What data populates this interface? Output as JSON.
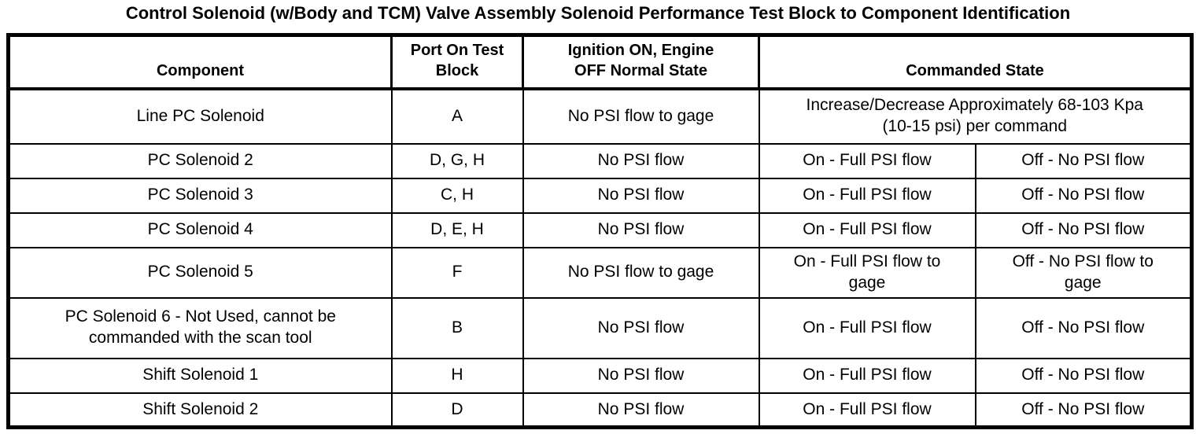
{
  "page": {
    "title": "Control Solenoid (w/Body and TCM) Valve Assembly Solenoid Performance Test Block to Component Identification"
  },
  "colors": {
    "border": "#000000",
    "text": "#000000",
    "background": "#ffffff"
  },
  "table": {
    "headers": {
      "component": "Component",
      "port": "Port On Test\nBlock",
      "ignition": "Ignition ON, Engine\nOFF Normal State",
      "commanded": "Commanded State"
    },
    "rows": [
      {
        "component": "Line PC Solenoid",
        "port": "A",
        "normal": "No PSI flow to gage",
        "commanded": "Increase/Decrease Approximately 68-103 Kpa\n(10-15 psi) per command"
      },
      {
        "component": "PC Solenoid 2",
        "port": "D, G, H",
        "normal": "No PSI flow",
        "on": "On - Full PSI flow",
        "off": "Off - No PSI flow"
      },
      {
        "component": "PC Solenoid 3",
        "port": "C, H",
        "normal": "No PSI flow",
        "on": "On - Full PSI flow",
        "off": "Off - No PSI flow"
      },
      {
        "component": "PC Solenoid 4",
        "port": "D, E, H",
        "normal": "No PSI flow",
        "on": "On - Full PSI flow",
        "off": "Off - No PSI flow"
      },
      {
        "component": "PC Solenoid 5",
        "port": "F",
        "normal": "No PSI flow to gage",
        "on": "On - Full PSI flow to\ngage",
        "off": "Off - No PSI flow to\ngage"
      },
      {
        "component": "PC Solenoid 6 - Not Used, cannot be\ncommanded with the scan tool",
        "port": "B",
        "normal": "No PSI flow",
        "on": "On - Full PSI flow",
        "off": "Off - No PSI flow"
      },
      {
        "component": "Shift Solenoid 1",
        "port": "H",
        "normal": "No PSI flow",
        "on": "On - Full PSI flow",
        "off": "Off - No PSI flow"
      },
      {
        "component": "Shift Solenoid 2",
        "port": "D",
        "normal": "No PSI flow",
        "on": "On - Full PSI flow",
        "off": "Off - No PSI flow"
      }
    ]
  }
}
